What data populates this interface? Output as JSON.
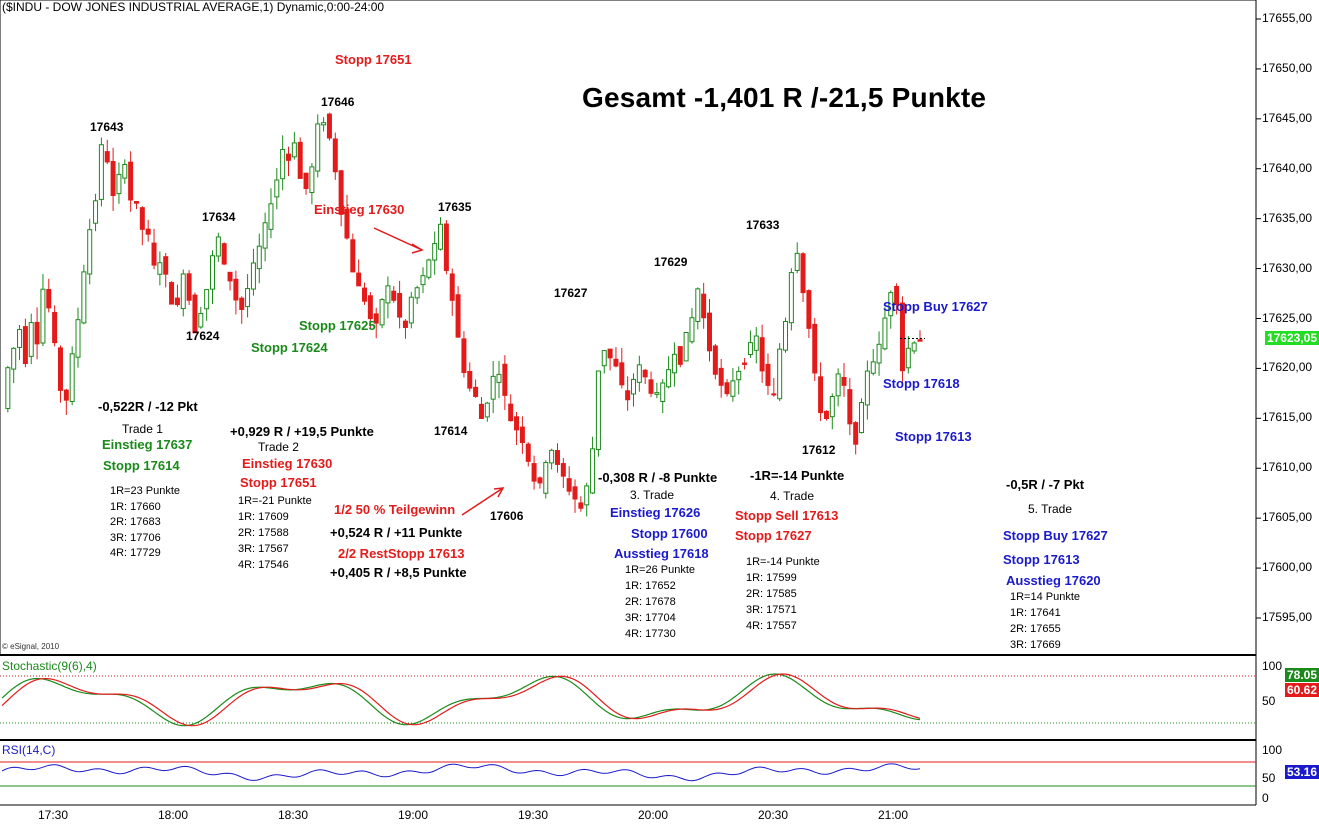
{
  "title": "($INDU - DOW JONES INDUSTRIAL AVERAGE,1) Dynamic,0:00-24:00",
  "copyright": "© eSignal, 2010",
  "headline": "Gesamt -1,401 R /-21,5 Punkte",
  "price_axis": [
    "17655,00",
    "17650,00",
    "17645,00",
    "17640,00",
    "17635,00",
    "17630,00",
    "17625,00",
    "17620,00",
    "17615,00",
    "17610,00",
    "17605,00",
    "17600,00",
    "17595,00"
  ],
  "last_price": "17623,05",
  "time_axis": [
    "17:30",
    "18:00",
    "18:30",
    "19:00",
    "19:30",
    "20:00",
    "20:30",
    "21:00"
  ],
  "stoch": {
    "label": "Stochastic(9(6),4)",
    "ticks": [
      "100",
      "50"
    ],
    "k_value": "78.05",
    "d_value": "60.62",
    "k_color": "#1a8a1a",
    "d_color": "#e31b1b"
  },
  "rsi": {
    "label": "RSI(14,C)",
    "ticks": [
      "100",
      "50",
      "0"
    ],
    "value": "53.16",
    "color": "#1a1acc"
  },
  "chart_data": {
    "type": "candlestick",
    "ylim": [
      17590,
      17658
    ],
    "labels": {
      "highs_lows": [
        "17643",
        "17634",
        "17624",
        "17646",
        "17635",
        "17614",
        "17606",
        "17627",
        "17629",
        "17633",
        "17612"
      ],
      "stopp_17651": "Stopp 17651",
      "einstieg_17630": "Einstieg 17630",
      "stopp_17625": "Stopp 17625",
      "stopp_17624": "Stopp 17624",
      "stopp_buy_17627a": "Stopp Buy 17627",
      "stopp_17618": "Stopp 17618",
      "stopp_17613a": "Stopp 17613"
    },
    "trade1": {
      "result": "-0,522R / -12 Pkt",
      "name": "Trade 1",
      "entry": "Einstieg 17637",
      "stop": "Stopp 17614",
      "levels": [
        "1R=23 Punkte",
        "1R: 17660",
        "2R: 17683",
        "3R: 17706",
        "4R: 17729"
      ]
    },
    "trade2": {
      "result": "+0,929 R / +19,5 Punkte",
      "name": "Trade 2",
      "entry": "Einstieg 17630",
      "stop": "Stopp 17651",
      "levels": [
        "1R=-21 Punkte",
        "1R: 17609",
        "2R: 17588",
        "3R: 17567",
        "4R: 17546"
      ],
      "partial": "1/2 50 % Teilgewinn",
      "partial_result": "+0,524 R / +11 Punkte",
      "rest": "2/2 RestStopp 17613",
      "rest_result": "+0,405 R / +8,5 Punkte"
    },
    "trade3": {
      "result": "-0,308 R / -8 Punkte",
      "name": "3. Trade",
      "entry": "Einstieg 17626",
      "stop": "Stopp 17600",
      "exit": "Ausstieg 17618",
      "levels": [
        "1R=26 Punkte",
        "1R: 17652",
        "2R: 17678",
        "3R: 17704",
        "4R: 17730"
      ]
    },
    "trade4": {
      "result": "-1R=-14 Punkte",
      "name": "4. Trade",
      "entry": "Stopp Sell 17613",
      "stop": "Stopp 17627",
      "levels": [
        "1R=-14 Punkte",
        "1R: 17599",
        "2R: 17585",
        "3R: 17571",
        "4R: 17557"
      ]
    },
    "trade5": {
      "result": "-0,5R / -7 Pkt",
      "name": "5. Trade",
      "entry": "Stopp Buy 17627",
      "stop": "Stopp 17613",
      "exit": "Ausstieg 17620",
      "levels": [
        "1R=14 Punkte",
        "1R: 17641",
        "2R: 17655",
        "3R: 17669"
      ]
    },
    "colors": {
      "up": "#1a8a1a",
      "down": "#e31b1b"
    },
    "price_path": [
      17616,
      17620,
      17622,
      17624,
      17621,
      17625,
      17623,
      17628,
      17626,
      17622,
      17618,
      17617,
      17621,
      17625,
      17630,
      17634,
      17637,
      17642,
      17641,
      17637,
      17639,
      17641,
      17637,
      17636,
      17634,
      17633,
      17630,
      17631,
      17629,
      17627,
      17626,
      17630,
      17627,
      17624,
      17626,
      17628,
      17631,
      17633,
      17630,
      17629,
      17627,
      17626,
      17628,
      17630,
      17632,
      17634,
      17637,
      17639,
      17642,
      17641,
      17643,
      17639,
      17638,
      17640,
      17644,
      17645,
      17643,
      17640,
      17636,
      17633,
      17630,
      17628,
      17627,
      17625,
      17624,
      17627,
      17628,
      17627,
      17625,
      17624,
      17627,
      17628,
      17629,
      17631,
      17632,
      17634,
      17630,
      17627,
      17623,
      17620,
      17618,
      17617,
      17615,
      17617,
      17619,
      17620,
      17617,
      17615,
      17614,
      17613,
      17611,
      17609,
      17608,
      17611,
      17612,
      17610,
      17609,
      17608,
      17607,
      17606,
      17608,
      17612,
      17620,
      17622,
      17621,
      17620,
      17618,
      17617,
      17619,
      17620,
      17619,
      17618,
      17617,
      17618,
      17620,
      17622,
      17621,
      17623,
      17625,
      17628,
      17625,
      17622,
      17620,
      17618,
      17617,
      17619,
      17620,
      17621,
      17622,
      17623,
      17620,
      17618,
      17617,
      17622,
      17625,
      17630,
      17632,
      17628,
      17624,
      17619,
      17616,
      17615,
      17617,
      17619,
      17618,
      17614,
      17613,
      17616,
      17620,
      17621,
      17622,
      17625,
      17628,
      17627,
      17620,
      17622,
      17623,
      17623
    ]
  }
}
